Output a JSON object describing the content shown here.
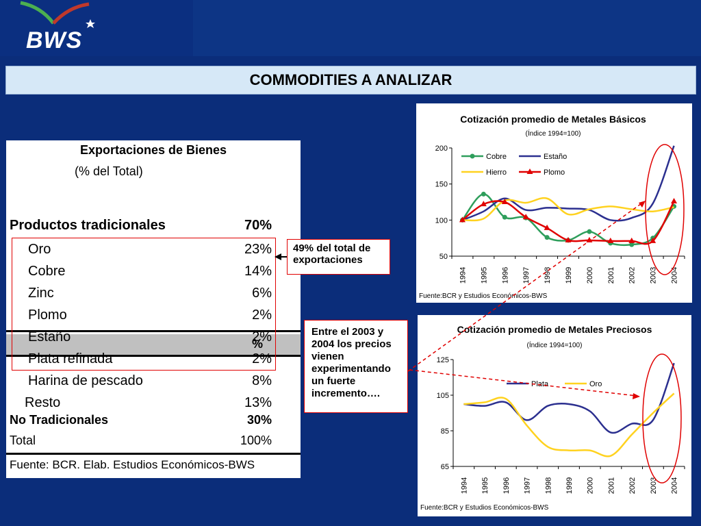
{
  "logo": {
    "text": "BWS"
  },
  "slide_title": "COMMODITIES A ANALIZAR",
  "table": {
    "title": "Exportaciones de Bienes",
    "subtitle": "(% del Total)",
    "pct_header": "%",
    "rows": [
      {
        "label": "Productos tradicionales",
        "value": "70%",
        "style": "bold-large"
      },
      {
        "label": "Oro",
        "value": "23%",
        "style": "indent"
      },
      {
        "label": "Cobre",
        "value": "14%",
        "style": "indent"
      },
      {
        "label": "Zinc",
        "value": "6%",
        "style": "indent"
      },
      {
        "label": "Plomo",
        "value": "2%",
        "style": "indent"
      },
      {
        "label": "Estaño",
        "value": "2%",
        "style": "indent"
      },
      {
        "label": "Plata refinada",
        "value": "2%",
        "style": "indent"
      },
      {
        "label": "Harina de pescado",
        "value": "8%",
        "style": "indent"
      },
      {
        "label": "Resto",
        "value": "13%",
        "style": "indent-small"
      },
      {
        "label": "No Tradicionales",
        "value": "30%",
        "style": "bold"
      },
      {
        "label": "Total",
        "value": "100%",
        "style": "normal"
      }
    ],
    "source": "Fuente: BCR. Elab. Estudios Económicos-BWS"
  },
  "note1": "49% del total de exportaciones",
  "note2": "Entre el 2003 y 2004 los precios vienen experimentando un fuerte incremento….",
  "colors": {
    "cobre": "#2e9e5b",
    "estano": "#2b2f8f",
    "hierro": "#ffd21f",
    "plomo": "#e00000",
    "plata": "#2b2f8f",
    "oro": "#ffd21f",
    "highlight": "#e00000",
    "background": "#0b2d7a"
  },
  "chart_data": [
    {
      "type": "line",
      "title": "Cotización promedio de Metales Básicos",
      "subtitle": "(Índice 1994=100)",
      "categories": [
        "1994",
        "1995",
        "1996",
        "1997",
        "1998",
        "1999",
        "2000",
        "2001",
        "2002",
        "2003",
        "2004"
      ],
      "ylim": [
        50,
        200
      ],
      "yticks": [
        50,
        100,
        150,
        200
      ],
      "legend": "top-left",
      "series": [
        {
          "name": "Cobre",
          "values": [
            100,
            136,
            104,
            103,
            76,
            72,
            84,
            68,
            66,
            75,
            119
          ]
        },
        {
          "name": "Estaño",
          "values": [
            100,
            112,
            130,
            114,
            117,
            116,
            114,
            100,
            103,
            123,
            203
          ]
        },
        {
          "name": "Hierro",
          "values": [
            100,
            102,
            127,
            124,
            130,
            108,
            115,
            119,
            115,
            112,
            118
          ]
        },
        {
          "name": "Plomo",
          "values": [
            100,
            122,
            125,
            104,
            89,
            72,
            72,
            71,
            71,
            71,
            126
          ]
        }
      ],
      "source": "Fuente:BCR y  Estudios Económicos-BWS"
    },
    {
      "type": "line",
      "title": "Cotización promedio de Metales Preciosos",
      "subtitle": "(Índice 1994=100)",
      "categories": [
        "1994",
        "1995",
        "1996",
        "1997",
        "1998",
        "1999",
        "2000",
        "2001",
        "2002",
        "2003",
        "2004"
      ],
      "ylim": [
        65,
        125
      ],
      "yticks": [
        65,
        85,
        105,
        125
      ],
      "legend": "top-center",
      "series": [
        {
          "name": "Plata",
          "values": [
            100,
            99,
            101,
            91,
            99,
            100,
            96,
            84,
            89,
            91,
            123
          ]
        },
        {
          "name": "Oro",
          "values": [
            100,
            101,
            103,
            88,
            76,
            74,
            74,
            71,
            83,
            95,
            106
          ]
        }
      ],
      "source": "Fuente:BCR y  Estudios Económicos-BWS"
    }
  ]
}
